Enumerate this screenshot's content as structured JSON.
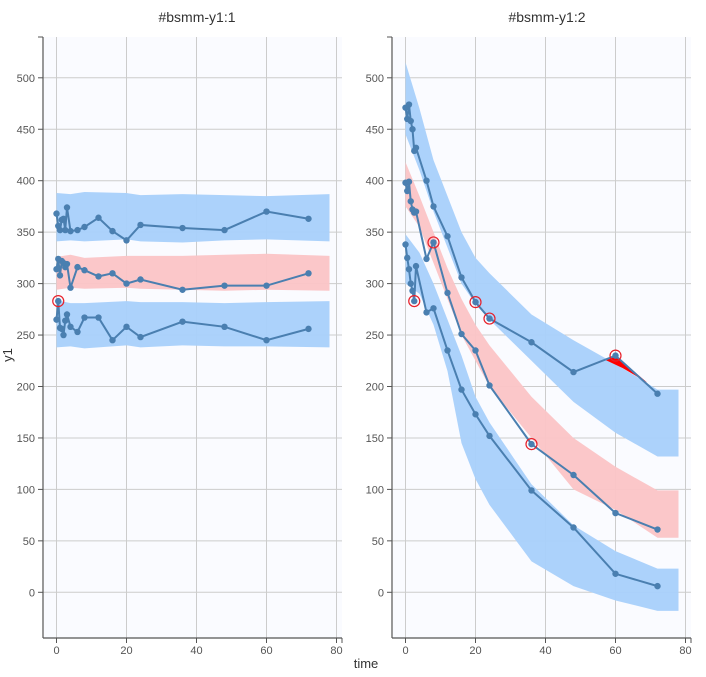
{
  "xlabel": "time",
  "ylabel": "y1",
  "colors": {
    "band_outer": "#a8d0fb",
    "band_median": "#fbc4c6",
    "line": "#4a7fb0",
    "outlier": "#e8202a",
    "plot_bg": "#fafbff",
    "out_of_band": "#ff0000"
  },
  "chart_data": [
    {
      "type": "line",
      "title": "#bsmm-y1:1",
      "xlabel": "time",
      "ylabel": "y1",
      "xlim": [
        -4,
        82
      ],
      "ylim": [
        -45,
        540
      ],
      "xticks": [
        0,
        20,
        40,
        60,
        80
      ],
      "yticks": [
        0,
        50,
        100,
        150,
        200,
        250,
        300,
        350,
        400,
        450,
        500
      ],
      "grid": true,
      "x": [
        0,
        0.5,
        1,
        1.5,
        2,
        2.5,
        3,
        4,
        6,
        8,
        12,
        16,
        20,
        24,
        36,
        48,
        60,
        72
      ],
      "series": [
        {
          "values": [
            368,
            356,
            352,
            362,
            363,
            352,
            374,
            351,
            352,
            355,
            364,
            351,
            342,
            357,
            354,
            352,
            370,
            363
          ],
          "outliers": []
        },
        {
          "values": [
            314,
            324,
            308,
            322,
            320,
            316,
            319,
            296,
            316,
            313,
            307,
            310,
            300,
            304,
            294,
            298,
            298,
            310
          ],
          "outliers": []
        },
        {
          "values": [
            265,
            283,
            257,
            256,
            250,
            264,
            270,
            258,
            253,
            267,
            267,
            245,
            258,
            248,
            263,
            258,
            245,
            256
          ],
          "outliers": [
            1
          ]
        }
      ],
      "bands": [
        {
          "kind": "outer",
          "x": [
            0,
            4,
            8,
            20,
            24,
            36,
            48,
            60,
            78
          ],
          "lower": [
            341,
            342,
            341,
            343,
            341,
            340,
            342,
            343,
            341
          ],
          "upper": [
            388,
            387,
            389,
            388,
            386,
            387,
            386,
            385,
            387
          ]
        },
        {
          "kind": "median",
          "x": [
            0,
            4,
            8,
            20,
            24,
            36,
            48,
            60,
            78
          ],
          "lower": [
            294,
            296,
            295,
            296,
            295,
            294,
            293,
            294,
            293
          ],
          "upper": [
            326,
            328,
            325,
            327,
            327,
            327,
            328,
            329,
            327
          ]
        },
        {
          "kind": "outer",
          "x": [
            0,
            4,
            8,
            20,
            24,
            36,
            48,
            60,
            78
          ],
          "lower": [
            238,
            239,
            237,
            240,
            238,
            240,
            239,
            239,
            238
          ],
          "upper": [
            284,
            281,
            281,
            283,
            282,
            282,
            281,
            282,
            283
          ]
        }
      ],
      "out_of_band_areas": []
    },
    {
      "type": "line",
      "title": "#bsmm-y1:2",
      "xlabel": "time",
      "ylabel": "y1",
      "xlim": [
        -4,
        82
      ],
      "ylim": [
        -45,
        540
      ],
      "xticks": [
        0,
        20,
        40,
        60,
        80
      ],
      "yticks": [
        0,
        50,
        100,
        150,
        200,
        250,
        300,
        350,
        400,
        450,
        500
      ],
      "grid": true,
      "x": [
        0,
        0.5,
        1,
        1.5,
        2,
        2.5,
        3,
        6,
        8,
        12,
        16,
        20,
        24,
        36,
        48,
        60,
        72
      ],
      "series": [
        {
          "values": [
            471,
            460,
            474,
            458,
            450,
            429,
            432,
            400,
            375,
            346,
            306,
            282,
            266,
            243,
            214,
            230,
            193
          ],
          "outliers": [
            11,
            12,
            15
          ]
        },
        {
          "values": [
            398,
            390,
            399,
            380,
            372,
            369,
            370,
            324,
            340,
            291,
            251,
            235,
            201,
            144,
            114,
            77,
            61
          ],
          "outliers": [
            8,
            13
          ]
        },
        {
          "values": [
            338,
            325,
            314,
            300,
            293,
            283,
            317,
            272,
            276,
            235,
            197,
            173,
            152,
            99,
            63,
            18,
            6
          ],
          "outliers": [
            5
          ]
        }
      ],
      "bands": [
        {
          "kind": "outer",
          "x": [
            0,
            4,
            8,
            12,
            16,
            20,
            24,
            36,
            48,
            60,
            72,
            78
          ],
          "lower": [
            445,
            410,
            370,
            335,
            300,
            280,
            265,
            225,
            185,
            155,
            132,
            132
          ],
          "upper": [
            515,
            470,
            420,
            385,
            350,
            325,
            310,
            270,
            245,
            222,
            197,
            197
          ]
        },
        {
          "kind": "median",
          "x": [
            0,
            4,
            8,
            12,
            16,
            20,
            24,
            36,
            48,
            60,
            72,
            78
          ],
          "lower": [
            375,
            355,
            320,
            285,
            250,
            225,
            200,
            150,
            100,
            80,
            53,
            53
          ],
          "upper": [
            418,
            385,
            350,
            315,
            285,
            260,
            240,
            190,
            150,
            122,
            99,
            99
          ]
        },
        {
          "kind": "outer",
          "x": [
            0,
            4,
            8,
            12,
            16,
            20,
            24,
            36,
            48,
            60,
            72,
            78
          ],
          "lower": [
            300,
            290,
            260,
            215,
            145,
            110,
            85,
            30,
            6,
            -8,
            -18,
            -18
          ],
          "upper": [
            348,
            330,
            300,
            265,
            230,
            190,
            165,
            105,
            65,
            40,
            23,
            23
          ]
        }
      ],
      "out_of_band_areas": [
        {
          "x": [
            57,
            60,
            69,
            62
          ],
          "y": [
            226,
            230,
            204,
            218
          ]
        }
      ]
    }
  ]
}
